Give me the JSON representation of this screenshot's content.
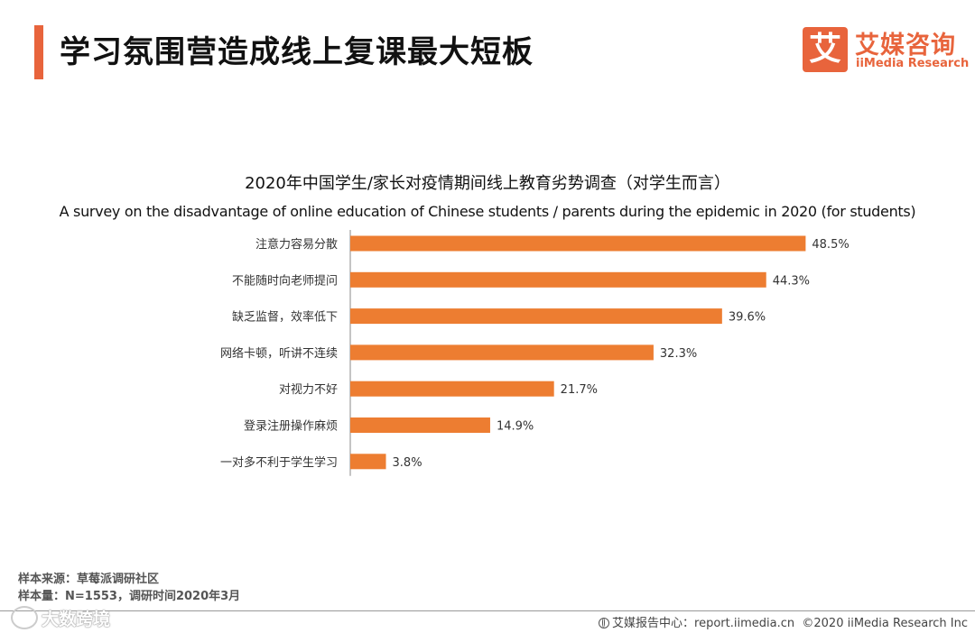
{
  "header": {
    "title": "学习氛围营造成线上复课最大短板"
  },
  "logo": {
    "mark": "艾",
    "name_cn": "艾媒咨询",
    "name_en": "iiMedia Research"
  },
  "colors": {
    "accent": "#e8643c",
    "bar": "#ed7d31",
    "axis": "#888888"
  },
  "chart_data": {
    "type": "bar",
    "orientation": "horizontal",
    "title": "2020年中国学生/家长对疫情期间线上教育劣势调查（对学生而言）",
    "subtitle": "A survey on the disadvantage of online education of Chinese students / parents during the epidemic in 2020 (for students)",
    "categories": [
      "注意力容易分散",
      "不能随时向老师提问",
      "缺乏监督，效率低下",
      "网络卡顿，听讲不连续",
      "对视力不好",
      "登录注册操作麻烦",
      "一对多不利于学生学习"
    ],
    "values": [
      48.5,
      44.3,
      39.6,
      32.3,
      21.7,
      14.9,
      3.8
    ],
    "value_labels": [
      "48.5%",
      "44.3%",
      "39.6%",
      "32.3%",
      "21.7%",
      "14.9%",
      "3.8%"
    ],
    "unit": "%",
    "xlim": [
      0,
      50
    ],
    "grid": false,
    "legend": "none"
  },
  "footer": {
    "source": "样本来源：草莓派调研社区",
    "sample": "样本量：N=1553，调研时间2020年3月",
    "watermark": "大数跨境",
    "credit_prefix": "艾媒报告中心：",
    "credit_url": "report.iimedia.cn",
    "copyright": "©2020 iiMedia Research Inc"
  }
}
